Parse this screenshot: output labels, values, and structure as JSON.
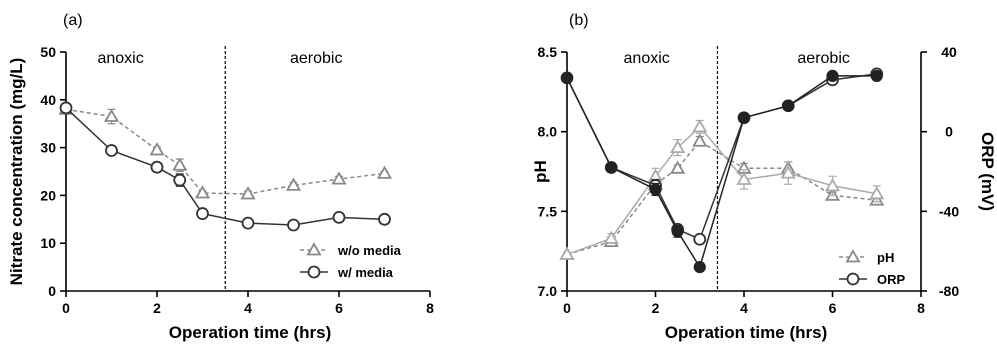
{
  "chart_data": [
    {
      "type": "line",
      "panel_label": "(a)",
      "xlabel": "Operation time (hrs)",
      "ylabel": "Nitrate concentration (mg/L)",
      "xlim": [
        0,
        8
      ],
      "ylim": [
        0,
        50
      ],
      "xticks": [
        0,
        2,
        4,
        6,
        8
      ],
      "yticks": [
        0,
        10,
        20,
        30,
        40,
        50
      ],
      "divider_x": 3.5,
      "regions": [
        "anoxic",
        "aerobic"
      ],
      "legend_position": "bottom-right",
      "series": [
        {
          "name": "w/o media",
          "marker": "triangle",
          "line_style": "dashed",
          "color": "#888888",
          "x": [
            0,
            1,
            2,
            2.5,
            3,
            4,
            5,
            6,
            7
          ],
          "y": [
            38,
            36.5,
            29.5,
            26.3,
            20.5,
            20.3,
            22.1,
            23.4,
            24.6
          ],
          "err": [
            0.7,
            1.5,
            0.6,
            1.3,
            0.4,
            0.6,
            0.6,
            0.6,
            0.4
          ]
        },
        {
          "name": "w/ media",
          "marker": "circle-open",
          "line_style": "solid",
          "color": "#333333",
          "x": [
            0,
            1,
            2,
            2.5,
            3,
            4,
            5,
            6,
            7
          ],
          "y": [
            38.3,
            29.4,
            25.9,
            23.2,
            16.2,
            14.2,
            13.8,
            15.4,
            15.0
          ],
          "err": [
            0.5,
            0.4,
            0.5,
            1.3,
            0.5,
            0.4,
            0.4,
            0.5,
            0.4
          ]
        }
      ]
    },
    {
      "type": "line",
      "panel_label": "(b)",
      "xlabel": "Operation time (hrs)",
      "ylabel": "pH",
      "y2label": "ORP (mV)",
      "xlim": [
        0,
        8
      ],
      "ylim": [
        7.0,
        8.5
      ],
      "y2lim": [
        -80,
        40
      ],
      "xticks": [
        0,
        2,
        4,
        6,
        8
      ],
      "yticks": [
        7.0,
        7.5,
        8.0,
        8.5
      ],
      "yticklabels": [
        "7.0",
        "7.5",
        "8.0",
        "8.5"
      ],
      "y2ticks": [
        -80,
        -40,
        0,
        40
      ],
      "divider_x": 3.4,
      "regions": [
        "anoxic",
        "aerobic"
      ],
      "legend_position": "bottom-right",
      "series": [
        {
          "name": "pH",
          "axis": "left",
          "marker": "triangle",
          "line_style": "dashed",
          "color": "#888888",
          "x": [
            0,
            1,
            2,
            2.5,
            3,
            4,
            5,
            6,
            7
          ],
          "y": [
            7.23,
            7.31,
            7.67,
            7.77,
            7.94,
            7.77,
            7.77,
            7.6,
            7.57
          ],
          "err": [
            0.01,
            0.03,
            0.03,
            0.02,
            0.03,
            0.03,
            0.04,
            0.02,
            0.02
          ]
        },
        {
          "name": "",
          "axis": "left",
          "marker": "triangle",
          "line_style": "solid",
          "color": "#aaaaaa",
          "x": [
            0,
            1,
            2,
            2.5,
            3,
            4,
            5,
            6,
            7
          ],
          "y": [
            7.23,
            7.33,
            7.72,
            7.9,
            8.03,
            7.7,
            7.74,
            7.66,
            7.61
          ],
          "err": [
            0.01,
            0.03,
            0.05,
            0.05,
            0.04,
            0.06,
            0.07,
            0.06,
            0.05
          ]
        },
        {
          "name": "ORP",
          "axis": "right",
          "marker": "circle-open",
          "line_style": "solid",
          "color": "#333333",
          "x": [
            0,
            1,
            2,
            2.5,
            3,
            4,
            5,
            6,
            7
          ],
          "y": [
            27,
            -18,
            -27,
            -49,
            -54,
            7,
            13,
            26,
            29
          ],
          "err": [
            1,
            1,
            3,
            2,
            2,
            1,
            1,
            1,
            1
          ]
        },
        {
          "name": "",
          "axis": "right",
          "marker": "circle-filled",
          "line_style": "solid",
          "color": "#222222",
          "x": [
            0,
            1,
            2,
            2.5,
            3,
            4,
            5,
            6,
            7
          ],
          "y": [
            27,
            -18,
            -29,
            -50,
            -68,
            7,
            13,
            28,
            28
          ],
          "err": [
            1,
            1,
            3,
            3,
            2,
            1,
            1,
            1,
            1
          ]
        }
      ]
    }
  ]
}
